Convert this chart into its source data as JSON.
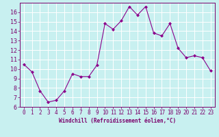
{
  "x": [
    0,
    1,
    2,
    3,
    4,
    5,
    6,
    7,
    8,
    9,
    10,
    11,
    12,
    13,
    14,
    15,
    16,
    17,
    18,
    19,
    20,
    21,
    22,
    23
  ],
  "y": [
    10.5,
    9.7,
    7.7,
    6.5,
    6.7,
    7.7,
    9.5,
    9.2,
    9.2,
    10.4,
    14.8,
    14.2,
    15.1,
    16.6,
    15.7,
    16.6,
    13.8,
    13.5,
    14.8,
    12.2,
    11.2,
    11.4,
    11.2,
    9.8
  ],
  "line_color": "#8B008B",
  "marker": "D",
  "marker_size": 2,
  "bg_color": "#c8f0f0",
  "grid_color": "#ffffff",
  "xlabel": "Windchill (Refroidissement éolien,°C)",
  "xlabel_color": "#7B006B",
  "tick_color": "#7B006B",
  "ylim": [
    6,
    17
  ],
  "xlim": [
    -0.5,
    23.5
  ],
  "yticks": [
    6,
    7,
    8,
    9,
    10,
    11,
    12,
    13,
    14,
    15,
    16
  ],
  "xticks": [
    0,
    1,
    2,
    3,
    4,
    5,
    6,
    7,
    8,
    9,
    10,
    11,
    12,
    13,
    14,
    15,
    16,
    17,
    18,
    19,
    20,
    21,
    22,
    23
  ],
  "xlabel_fontsize": 5.5,
  "tick_fontsize": 5.5,
  "ytick_fontsize": 6
}
